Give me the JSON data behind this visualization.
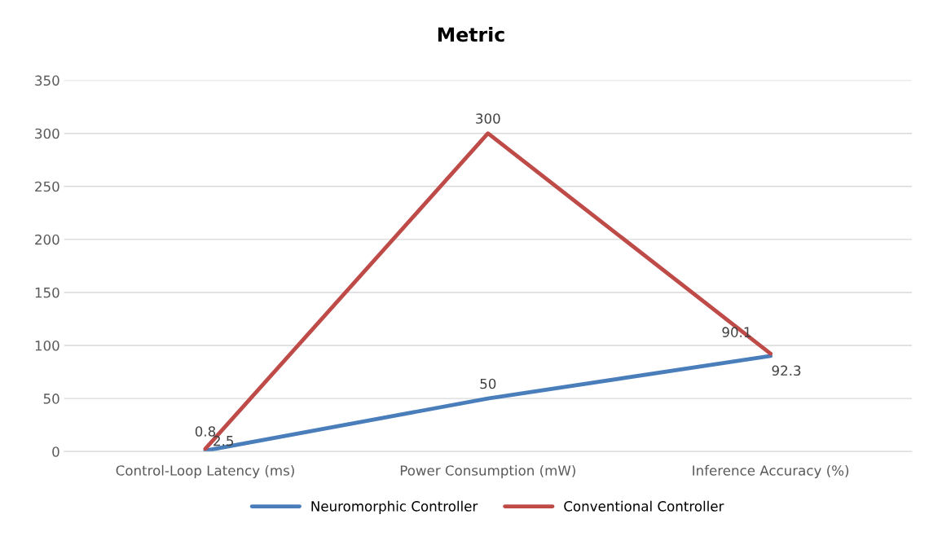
{
  "chart_data": {
    "type": "line",
    "title": "Metric",
    "categories": [
      "Control-Loop Latency (ms)",
      "Power Consumption (mW)",
      "Inference Accuracy (%)"
    ],
    "series": [
      {
        "name": "Neuromorphic Controller",
        "color": "#4a7ebb",
        "values": [
          0.8,
          50,
          90.1
        ]
      },
      {
        "name": "Conventional Controller",
        "color": "#be4b48",
        "values": [
          2.5,
          300,
          92.3
        ]
      }
    ],
    "ylim": [
      0,
      350
    ],
    "yticks": [
      0,
      50,
      100,
      150,
      200,
      250,
      300,
      350
    ],
    "grid": "y",
    "legend": "bottom",
    "data_labels": true,
    "marker": "none",
    "line_style": "solid"
  }
}
